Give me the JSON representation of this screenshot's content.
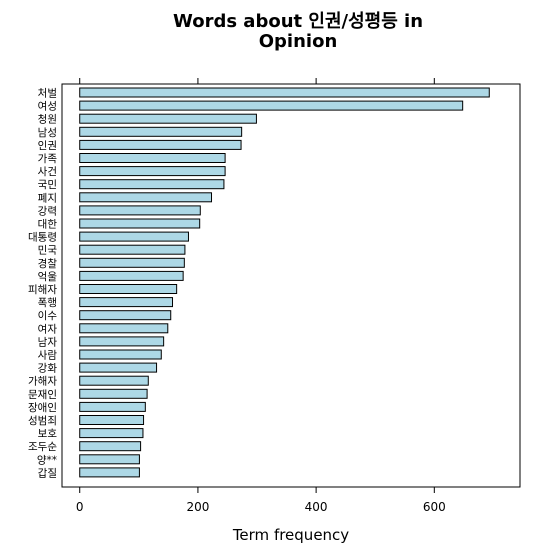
{
  "chart_data": {
    "type": "bar",
    "orientation": "horizontal",
    "title": [
      "Words about 인권/성평등 in",
      "Opinion"
    ],
    "xlabel": "Term frequency",
    "ylabel": "",
    "xlim": [
      -30,
      745
    ],
    "xticks": [
      0,
      200,
      400,
      600
    ],
    "grid": false,
    "legend": "none",
    "bar_color": "#add8e6",
    "bar_edge_color": "#000000",
    "categories": [
      "처벌",
      "여성",
      "청원",
      "남성",
      "인권",
      "가족",
      "사건",
      "국민",
      "폐지",
      "강력",
      "대한",
      "대통령",
      "민국",
      "경찰",
      "억울",
      "피해자",
      "폭행",
      "이수",
      "여자",
      "남자",
      "사람",
      "강화",
      "가해자",
      "문재인",
      "장애인",
      "성범죄",
      "보호",
      "조두순",
      "양**",
      "갑질"
    ],
    "values": [
      693,
      648,
      299,
      274,
      273,
      246,
      246,
      244,
      223,
      204,
      203,
      184,
      178,
      177,
      175,
      164,
      157,
      154,
      149,
      142,
      138,
      130,
      116,
      114,
      111,
      108,
      107,
      103,
      101,
      101
    ]
  }
}
